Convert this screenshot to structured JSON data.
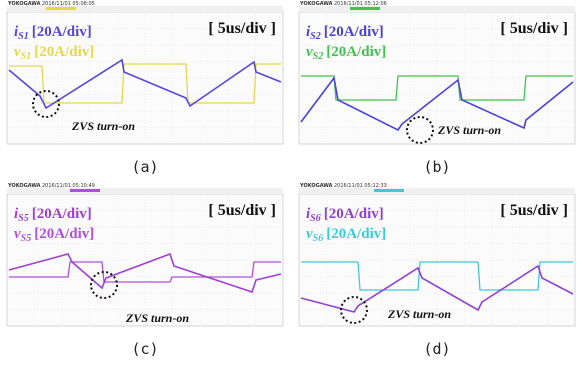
{
  "panels": [
    {
      "header": {
        "brand": "YOKOGAWA",
        "timestamp": "2016/11/01 05:08:05"
      },
      "current_label": {
        "symbol": "i",
        "subscript": "S1",
        "scale": "[20A/div]"
      },
      "voltage_label": {
        "symbol": "v",
        "subscript": "S1",
        "scale": "[20A/div]"
      },
      "time_scale": "[ 5us/div ]",
      "annotation": "ZVS turn-on",
      "caption": "(a)"
    },
    {
      "header": {
        "brand": "YOKOGAWA",
        "timestamp": "2016/11/01 05:12:06"
      },
      "current_label": {
        "symbol": "i",
        "subscript": "S2",
        "scale": "[20A/div]"
      },
      "voltage_label": {
        "symbol": "v",
        "subscript": "S2",
        "scale": "[20A/div]"
      },
      "time_scale": "[ 5us/div ]",
      "annotation": "ZVS turn-on",
      "caption": "(b)"
    },
    {
      "header": {
        "brand": "YOKOGAWA",
        "timestamp": "2016/11/01 05:10:49"
      },
      "current_label": {
        "symbol": "i",
        "subscript": "S5",
        "scale": "[20A/div]"
      },
      "voltage_label": {
        "symbol": "v",
        "subscript": "S5",
        "scale": "[20A/div]"
      },
      "time_scale": "[ 5us/div ]",
      "annotation": "ZVS turn-on",
      "caption": "(c)"
    },
    {
      "header": {
        "brand": "YOKOGAWA",
        "timestamp": "2016/11/01 05:12:33"
      },
      "current_label": {
        "symbol": "i",
        "subscript": "S6",
        "scale": "[20A/div]"
      },
      "voltage_label": {
        "symbol": "v",
        "subscript": "S6",
        "scale": "[20A/div]"
      },
      "time_scale": "[ 5us/div ]",
      "annotation": "ZVS turn-on",
      "caption": "(d)"
    }
  ]
}
